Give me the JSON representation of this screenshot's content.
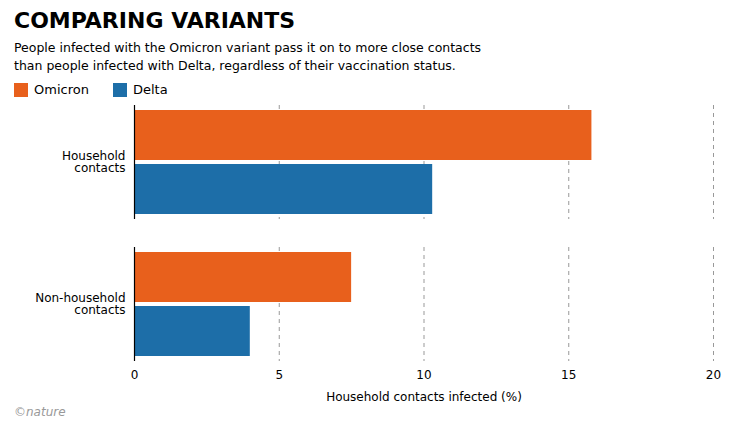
{
  "chart_data": {
    "type": "bar",
    "orientation": "horizontal",
    "title": "COMPARING VARIANTS",
    "subtitle": "People infected with the Omicron variant pass it on to more close contacts\nthan people infected with Delta, regardless of their vaccination status.",
    "categories": [
      "Household\ncontacts",
      "Non-household\ncontacts"
    ],
    "series": [
      {
        "name": "Omicron",
        "color": "#E8601C",
        "values": [
          15.8,
          7.5
        ]
      },
      {
        "name": "Delta",
        "color": "#1D6EA8",
        "values": [
          10.3,
          4.0
        ]
      }
    ],
    "xlabel": "Household contacts infected (%)",
    "xlim": [
      0,
      20
    ],
    "xticks": [
      0,
      5,
      10,
      15,
      20
    ],
    "grid": true,
    "legend": "top",
    "annotations": [
      "©nature"
    ]
  }
}
